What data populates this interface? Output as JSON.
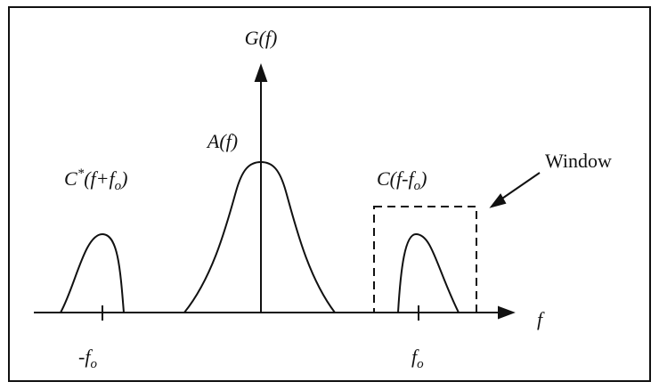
{
  "labels": {
    "g_axis": {
      "base": "G(f)"
    },
    "a_curve": {
      "base": "A(f)"
    },
    "c_conj": {
      "base": "C",
      "sup": "*",
      "open": "(f+f",
      "sub": "o",
      "close": ")"
    },
    "c_shift": {
      "open": "C(f-f",
      "sub": "o",
      "close": ")"
    },
    "window": "Window",
    "f_axis": "f",
    "neg_f0": {
      "base": "-f",
      "sub": "o"
    },
    "pos_f0": {
      "base": "f",
      "sub": "o"
    }
  }
}
